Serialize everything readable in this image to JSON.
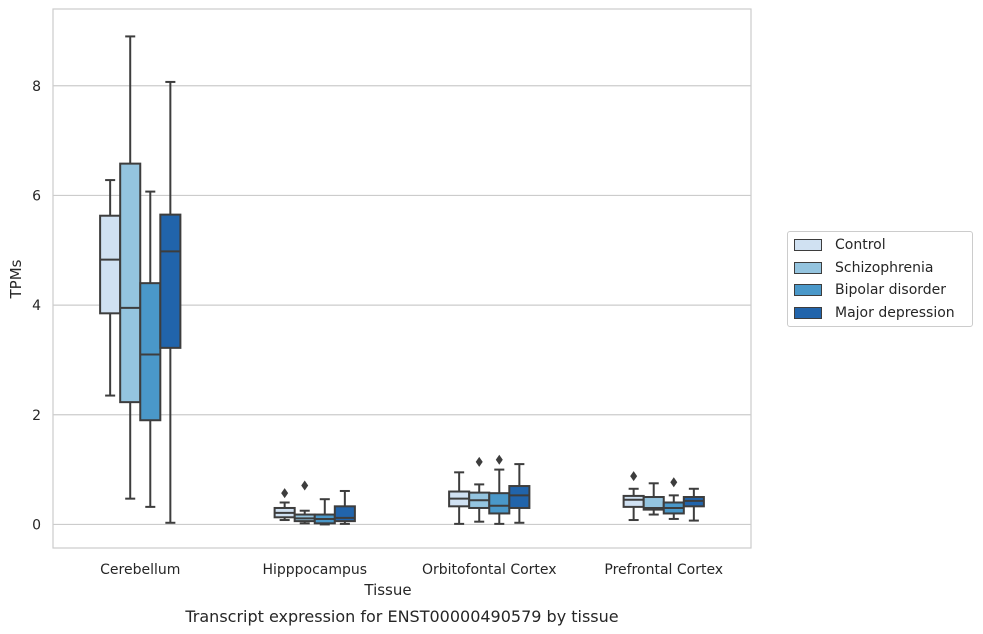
{
  "chart_data": {
    "type": "box",
    "title": "Transcript expression for ENST00000490579 by tissue",
    "xlabel": "Tissue",
    "ylabel": "TPMs",
    "ylim": [
      -0.43,
      9.4
    ],
    "yticks": [
      0,
      2,
      4,
      6,
      8
    ],
    "grid": "horizontal",
    "legend_position": "right",
    "categories": [
      "Cerebellum",
      "Hipppocampus",
      "Orbitofontal Cortex",
      "Prefrontal Cortex"
    ],
    "series": [
      {
        "name": "Control",
        "color": "#d0e1f2",
        "boxes": [
          {
            "whislo": 2.35,
            "q1": 3.85,
            "med": 4.83,
            "q3": 5.63,
            "whishi": 6.28,
            "fliers": []
          },
          {
            "whislo": 0.08,
            "q1": 0.13,
            "med": 0.21,
            "q3": 0.3,
            "whishi": 0.4,
            "fliers": [
              0.57
            ]
          },
          {
            "whislo": 0.01,
            "q1": 0.33,
            "med": 0.47,
            "q3": 0.6,
            "whishi": 0.95,
            "fliers": []
          },
          {
            "whislo": 0.08,
            "q1": 0.32,
            "med": 0.45,
            "q3": 0.52,
            "whishi": 0.65,
            "fliers": [
              0.88
            ]
          }
        ]
      },
      {
        "name": "Schizophrenia",
        "color": "#94c4df",
        "boxes": [
          {
            "whislo": 0.47,
            "q1": 2.23,
            "med": 3.95,
            "q3": 6.58,
            "whishi": 8.9,
            "fliers": []
          },
          {
            "whislo": 0.02,
            "q1": 0.06,
            "med": 0.11,
            "q3": 0.18,
            "whishi": 0.25,
            "fliers": [
              0.71
            ]
          },
          {
            "whislo": 0.05,
            "q1": 0.3,
            "med": 0.44,
            "q3": 0.58,
            "whishi": 0.73,
            "fliers": [
              1.14
            ]
          },
          {
            "whislo": 0.18,
            "q1": 0.27,
            "med": 0.3,
            "q3": 0.5,
            "whishi": 0.75,
            "fliers": []
          }
        ]
      },
      {
        "name": "Bipolar disorder",
        "color": "#4a98c9",
        "boxes": [
          {
            "whislo": 0.32,
            "q1": 1.9,
            "med": 3.1,
            "q3": 4.4,
            "whishi": 6.07,
            "fliers": []
          },
          {
            "whislo": 0.0,
            "q1": 0.02,
            "med": 0.1,
            "q3": 0.18,
            "whishi": 0.46,
            "fliers": []
          },
          {
            "whislo": 0.01,
            "q1": 0.2,
            "med": 0.34,
            "q3": 0.57,
            "whishi": 1.0,
            "fliers": [
              1.18
            ]
          },
          {
            "whislo": 0.1,
            "q1": 0.2,
            "med": 0.3,
            "q3": 0.4,
            "whishi": 0.53,
            "fliers": [
              0.77
            ]
          }
        ]
      },
      {
        "name": "Major depression",
        "color": "#2164ab",
        "boxes": [
          {
            "whislo": 0.03,
            "q1": 3.22,
            "med": 4.98,
            "q3": 5.65,
            "whishi": 8.07,
            "fliers": []
          },
          {
            "whislo": 0.01,
            "q1": 0.06,
            "med": 0.12,
            "q3": 0.33,
            "whishi": 0.61,
            "fliers": []
          },
          {
            "whislo": 0.03,
            "q1": 0.3,
            "med": 0.53,
            "q3": 0.7,
            "whishi": 1.1,
            "fliers": []
          },
          {
            "whislo": 0.07,
            "q1": 0.33,
            "med": 0.43,
            "q3": 0.5,
            "whishi": 0.65,
            "fliers": []
          }
        ]
      }
    ]
  }
}
